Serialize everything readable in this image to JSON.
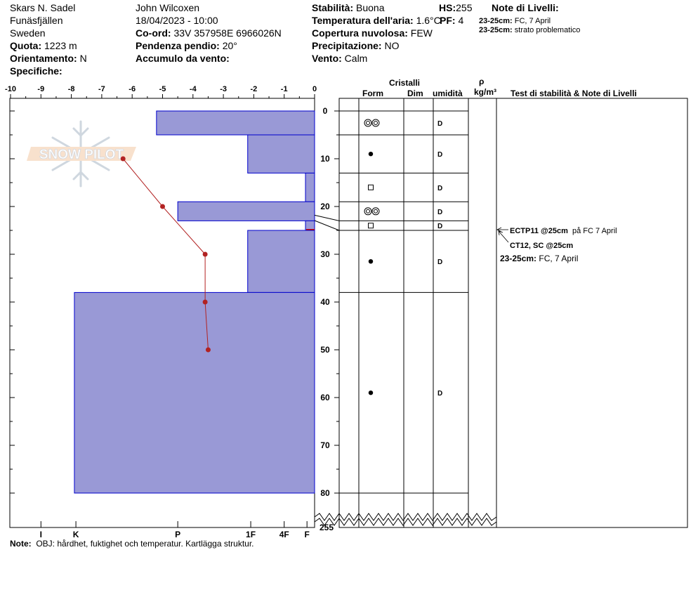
{
  "header": {
    "location": "Skars N. Sadel",
    "region": "Funäsfjällen",
    "country": "Sweden",
    "elevation_label": "Quota:",
    "elevation_value": "1223 m",
    "aspect_label": "Orientamento:",
    "aspect_value": "N",
    "specifics_label": "Specifiche:",
    "observer": "John Wilcoxen",
    "datetime": "18/04/2023 - 10:00",
    "coord_label": "Co-ord:",
    "coord_value": "33V 357958E 6966026N",
    "slope_label": "Pendenza pendio:",
    "slope_value": "20°",
    "wind_loading_label": "Accumulo da vento:",
    "stability_label": "Stabilità:",
    "stability_value": "Buona",
    "air_temp_label": "Temperatura dell'aria:",
    "air_temp_value": "1.6°C",
    "cloud_label": "Copertura nuvolosa:",
    "cloud_value": "FEW",
    "precip_label": "Precipitazione:",
    "precip_value": "NO",
    "wind_label": "Vento:",
    "wind_value": "Calm",
    "hs_label": "HS:",
    "hs_value": "255",
    "pf_label": "PF:",
    "pf_value": "4",
    "layer_notes_title": "Note di Livelli:",
    "layer_notes": [
      {
        "depth": "23-25cm:",
        "text": "FC, 7 April"
      },
      {
        "depth": "23-25cm:",
        "text": "strato problematico"
      }
    ]
  },
  "columns": {
    "crystals": "Cristalli",
    "form": "Form",
    "dim": "Dim",
    "humidity": "umidità",
    "rho": "ρ",
    "density_unit": "kg/m³",
    "tests": "Test di stabilità & Note di Livelli"
  },
  "watermark": "SNOW PILOT",
  "note_label": "Note:",
  "note_text": "OBJ: hårdhet, fuktighet och temperatur. Kartlägga struktur.",
  "stability_tests": [
    {
      "bold": "ECTP11 @25cm",
      "text": "på FC 7 April"
    },
    {
      "bold": "CT12, SC @25cm",
      "text": ""
    },
    {
      "bold": "23-25cm:",
      "text": "FC, 7 April"
    }
  ],
  "colors": {
    "hardness_fill": "#9999d6",
    "hardness_stroke": "#0000cc",
    "temperature": "#b22222",
    "problem_layer": "#cc0000"
  },
  "chart_data": {
    "type": "bar",
    "temp_axis": {
      "min": -10,
      "max": 0,
      "ticks": [
        "-10",
        "-9",
        "-8",
        "-7",
        "-6",
        "-5",
        "-4",
        "-3",
        "-2",
        "-1",
        "0"
      ]
    },
    "depth_axis": {
      "min": 0,
      "max": 80,
      "ticks": [
        "0",
        "10",
        "20",
        "30",
        "40",
        "50",
        "60",
        "70",
        "80"
      ],
      "bottom_label": "255"
    },
    "hardness_ticks": [
      {
        "label": "I",
        "value": -9
      },
      {
        "label": "K",
        "value": -7.85
      },
      {
        "label": "P",
        "value": -4.5
      },
      {
        "label": "1F",
        "value": -2.1
      },
      {
        "label": "4F",
        "value": -1.0
      },
      {
        "label": "F",
        "value": -0.25
      }
    ],
    "layers": [
      {
        "top": 0,
        "bottom": 5,
        "hardness": -5.2,
        "form": "rounding-faceted",
        "wetness": "D"
      },
      {
        "top": 5,
        "bottom": 13,
        "hardness": -2.2,
        "form": "rounded",
        "wetness": "D"
      },
      {
        "top": 13,
        "bottom": 19,
        "hardness": -0.3,
        "form": "faceted",
        "wetness": "D"
      },
      {
        "top": 19,
        "bottom": 23,
        "hardness": -4.5,
        "form": "rounding-faceted",
        "wetness": "D"
      },
      {
        "top": 23,
        "bottom": 25,
        "hardness": -0.3,
        "form": "faceted",
        "wetness": "D",
        "problem": true
      },
      {
        "top": 25,
        "bottom": 38,
        "hardness": -2.2,
        "form": "rounded",
        "wetness": "D"
      },
      {
        "top": 38,
        "bottom": 80,
        "hardness": -7.9,
        "form": "rounded",
        "wetness": "D"
      }
    ],
    "temperature_profile": [
      {
        "depth": 10,
        "temp": -6.3
      },
      {
        "depth": 20,
        "temp": -5.0
      },
      {
        "depth": 30,
        "temp": -3.6
      },
      {
        "depth": 40,
        "temp": -3.6
      },
      {
        "depth": 50,
        "temp": -3.5
      }
    ]
  }
}
